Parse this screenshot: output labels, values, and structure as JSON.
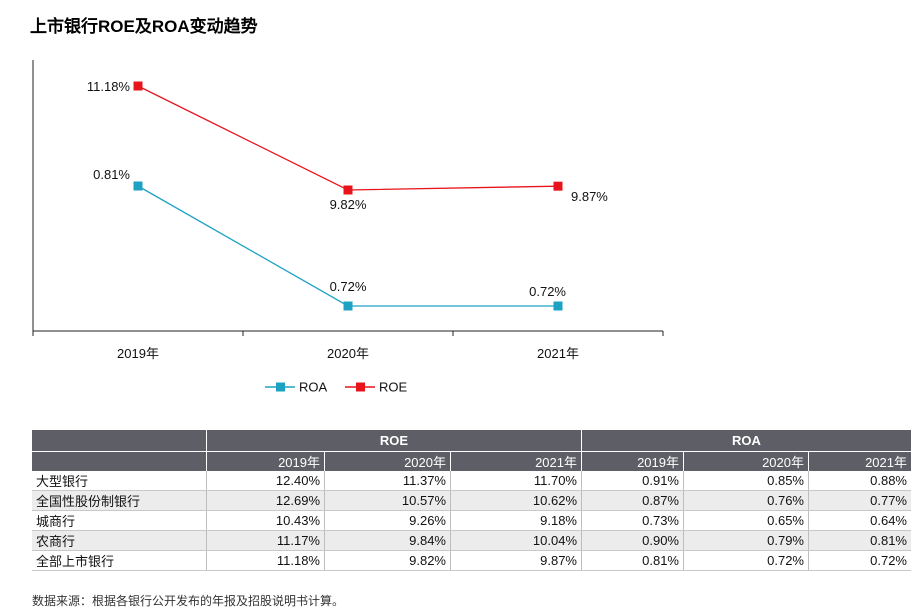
{
  "title": "上市银行ROE及ROA变动趋势",
  "chart_data": {
    "type": "line",
    "title": "上市银行ROE及ROA变动趋势",
    "categories": [
      "2019年",
      "2020年",
      "2021年"
    ],
    "series": [
      {
        "name": "ROA",
        "values": [
          0.81,
          0.72,
          0.72
        ],
        "labels": [
          "0.81%",
          "0.72%",
          "0.72%"
        ],
        "color": "#1ea2c3"
      },
      {
        "name": "ROE",
        "values": [
          11.18,
          9.82,
          9.87
        ],
        "labels": [
          "11.18%",
          "9.82%",
          "9.87%"
        ],
        "color": "#e8141c"
      }
    ],
    "legend": [
      "ROA",
      "ROE"
    ],
    "legend_position": "bottom",
    "xlabel": "",
    "ylabel": "",
    "grid": false
  },
  "table": {
    "group_headers": [
      "ROE",
      "ROA"
    ],
    "year_headers": [
      "2019年",
      "2020年",
      "2021年",
      "2019年",
      "2020年",
      "2021年"
    ],
    "rows": [
      {
        "name": "大型银行",
        "values": [
          "12.40%",
          "11.37%",
          "11.70%",
          "0.91%",
          "0.85%",
          "0.88%"
        ]
      },
      {
        "name": "全国性股份制银行",
        "values": [
          "12.69%",
          "10.57%",
          "10.62%",
          "0.87%",
          "0.76%",
          "0.77%"
        ]
      },
      {
        "name": "城商行",
        "values": [
          "10.43%",
          "9.26%",
          "9.18%",
          "0.73%",
          "0.65%",
          "0.64%"
        ]
      },
      {
        "name": "农商行",
        "values": [
          "11.17%",
          "9.84%",
          "10.04%",
          "0.90%",
          "0.79%",
          "0.81%"
        ]
      },
      {
        "name": "全部上市银行",
        "values": [
          "11.18%",
          "9.82%",
          "9.87%",
          "0.81%",
          "0.72%",
          "0.72%"
        ]
      }
    ]
  },
  "source": "数据来源：根据各银行公开发布的年报及招股说明书计算。"
}
